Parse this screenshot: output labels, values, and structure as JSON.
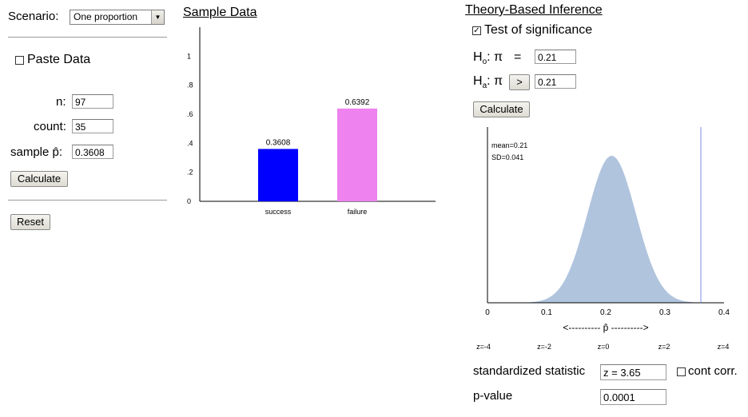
{
  "left_panel": {
    "scenario_label": "Scenario:",
    "scenario_value": "One proportion",
    "paste_data_label": "Paste Data",
    "n_label": "n:",
    "n_value": "97",
    "count_label": "count:",
    "count_value": "35",
    "phat_label": "sample p̂:",
    "phat_value": "0.3608",
    "calculate_label": "Calculate",
    "reset_label": "Reset"
  },
  "sample_data": {
    "title": "Sample Data",
    "chart_data": {
      "type": "bar",
      "categories": [
        "success",
        "failure"
      ],
      "values": [
        0.3608,
        0.6392
      ],
      "value_labels": [
        "0.3608",
        "0.6392"
      ],
      "colors": [
        "#0000ff",
        "#ee82ee"
      ],
      "yticks": [
        "0",
        ".2",
        ".4",
        ".6",
        ".8",
        "1"
      ],
      "ylim": [
        0,
        1.2
      ]
    }
  },
  "theory": {
    "title": "Theory-Based Inference",
    "test_label": "Test of significance",
    "test_checked": true,
    "h0_label": "Ho: π",
    "h0_sub": "o",
    "h0_op": "=",
    "h0_value": "0.21",
    "ha_sub": "a",
    "ha_op": ">",
    "ha_value": "0.21",
    "calculate_label": "Calculate",
    "curve": {
      "mean_text": "mean=0.21",
      "sd_text": "SD=0.041",
      "mean": 0.21,
      "sd": 0.041,
      "observed": 0.3608,
      "xlim": [
        0,
        0.4
      ],
      "xticks": [
        "0",
        "0.1",
        "0.2",
        "0.3",
        "0.4"
      ],
      "axis_label": "<---------- p̂ ---------->",
      "zticks": [
        "z=-4",
        "z=-2",
        "z=0",
        "z=2",
        "z=4"
      ],
      "fill": "#b0c4de",
      "line_color": "#7b8ee6"
    },
    "std_stat_label": "standardized statistic",
    "std_stat_value": "z = 3.65",
    "cont_corr_label": "cont corr.",
    "pvalue_label": "p-value",
    "pvalue_value": "0.0001"
  }
}
